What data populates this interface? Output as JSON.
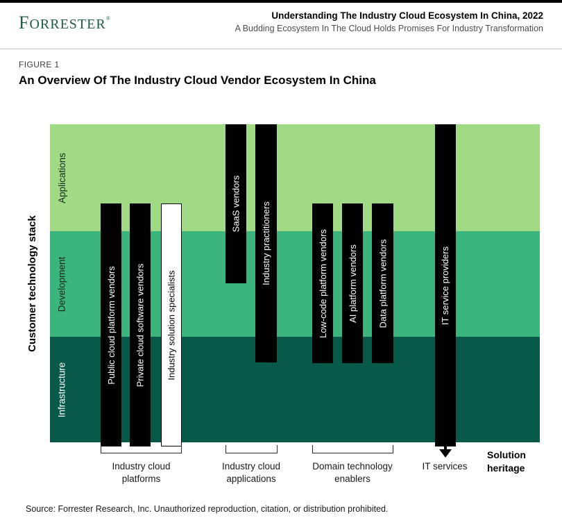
{
  "header": {
    "logo_f": "F",
    "logo_rest": "ORRESTER",
    "logo_reg": "®",
    "title": "Understanding The Industry Cloud Ecosystem In China, 2022",
    "subtitle": "A Budding Ecosystem In The Cloud Holds Promises For Industry Transformation"
  },
  "figure": {
    "label": "FIGURE 1",
    "title": "An Overview Of The Industry Cloud Vendor Ecosystem In China"
  },
  "chart_data": {
    "type": "diagram",
    "y_axis_label": "Customer technology stack",
    "bands": [
      {
        "label": "Applications",
        "color": "#A0DA85"
      },
      {
        "label": "Development",
        "color": "#3BB47E"
      },
      {
        "label": "Infrastructure",
        "color": "#075A49"
      }
    ],
    "bars": [
      {
        "label": "Public cloud platform vendors",
        "group": "Industry cloud platforms",
        "fill": "#000000",
        "spans": [
          "applications (partial)",
          "development",
          "infrastructure"
        ]
      },
      {
        "label": "Private cloud software vendors",
        "group": "Industry cloud platforms",
        "fill": "#000000",
        "spans": [
          "applications (partial)",
          "development",
          "infrastructure"
        ]
      },
      {
        "label": "Industry solution specialists",
        "group": "Industry cloud platforms",
        "fill": "#FFFFFF",
        "spans": [
          "applications (partial)",
          "development",
          "infrastructure"
        ]
      },
      {
        "label": "SaaS vendors",
        "group": "Industry cloud applications",
        "fill": "#000000",
        "spans": [
          "applications",
          "development (partial)"
        ]
      },
      {
        "label": "Industry practitioners",
        "group": "Industry cloud applications",
        "fill": "#000000",
        "spans": [
          "applications",
          "development",
          "infrastructure (partial)"
        ]
      },
      {
        "label": "Low-code platform vendors",
        "group": "Domain technology enablers",
        "fill": "#000000",
        "spans": [
          "applications (partial)",
          "development",
          "infrastructure (partial)"
        ]
      },
      {
        "label": "AI platform vendors",
        "group": "Domain technology enablers",
        "fill": "#000000",
        "spans": [
          "applications (partial)",
          "development",
          "infrastructure (partial)"
        ]
      },
      {
        "label": "Data platform vendors",
        "group": "Domain technology enablers",
        "fill": "#000000",
        "spans": [
          "applications (partial)",
          "development",
          "infrastructure (partial)"
        ]
      },
      {
        "label": "IT service providers",
        "group": "IT services",
        "fill": "#000000",
        "spans": [
          "applications",
          "development",
          "infrastructure"
        ],
        "arrow": "down"
      }
    ],
    "groups": [
      {
        "line1": "Industry cloud",
        "line2": "platforms"
      },
      {
        "line1": "Industry cloud",
        "line2": "applications"
      },
      {
        "line1": "Domain technology",
        "line2": "enablers"
      },
      {
        "line1": "IT services",
        "line2": ""
      }
    ],
    "heritage": {
      "line1": "Solution",
      "line2": "heritage"
    }
  },
  "source": "Source: Forrester Research, Inc. Unauthorized reproduction, citation, or distribution prohibited."
}
